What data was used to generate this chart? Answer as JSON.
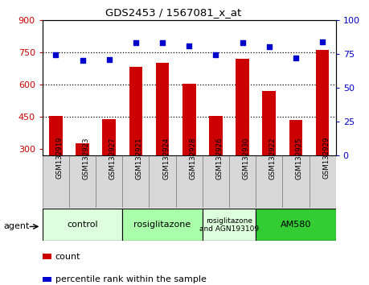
{
  "title": "GDS2453 / 1567081_x_at",
  "categories": [
    "GSM132919",
    "GSM132923",
    "GSM132927",
    "GSM132921",
    "GSM132924",
    "GSM132928",
    "GSM132926",
    "GSM132930",
    "GSM132922",
    "GSM132925",
    "GSM132929"
  ],
  "bar_values": [
    455,
    325,
    440,
    680,
    700,
    605,
    455,
    720,
    570,
    435,
    760
  ],
  "dot_values": [
    74,
    70,
    71,
    83,
    83,
    81,
    74,
    83,
    80,
    72,
    84
  ],
  "bar_color": "#cc0000",
  "dot_color": "#0000cc",
  "ylim_left": [
    270,
    900
  ],
  "ylim_right": [
    0,
    100
  ],
  "yticks_left": [
    300,
    450,
    600,
    750,
    900
  ],
  "yticks_right": [
    0,
    25,
    50,
    75,
    100
  ],
  "hgrid_vals": [
    450,
    600,
    750
  ],
  "agent_groups": [
    {
      "label": "control",
      "start": 0,
      "end": 2,
      "color": "#ddffdd"
    },
    {
      "label": "rosiglitazone",
      "start": 3,
      "end": 5,
      "color": "#aaffaa"
    },
    {
      "label": "rosiglitazone\nand AGN193109",
      "start": 6,
      "end": 7,
      "color": "#ddffdd"
    },
    {
      "label": "AM580",
      "start": 8,
      "end": 10,
      "color": "#33cc33"
    }
  ],
  "legend_count_label": "count",
  "legend_pct_label": "percentile rank within the sample",
  "agent_label": "agent",
  "bar_color_left": "#cc0000",
  "tick_color_right": "#0000cc",
  "cell_bg_color": "#d8d8d8",
  "cell_edge_color": "#888888",
  "fig_bg": "#ffffff"
}
